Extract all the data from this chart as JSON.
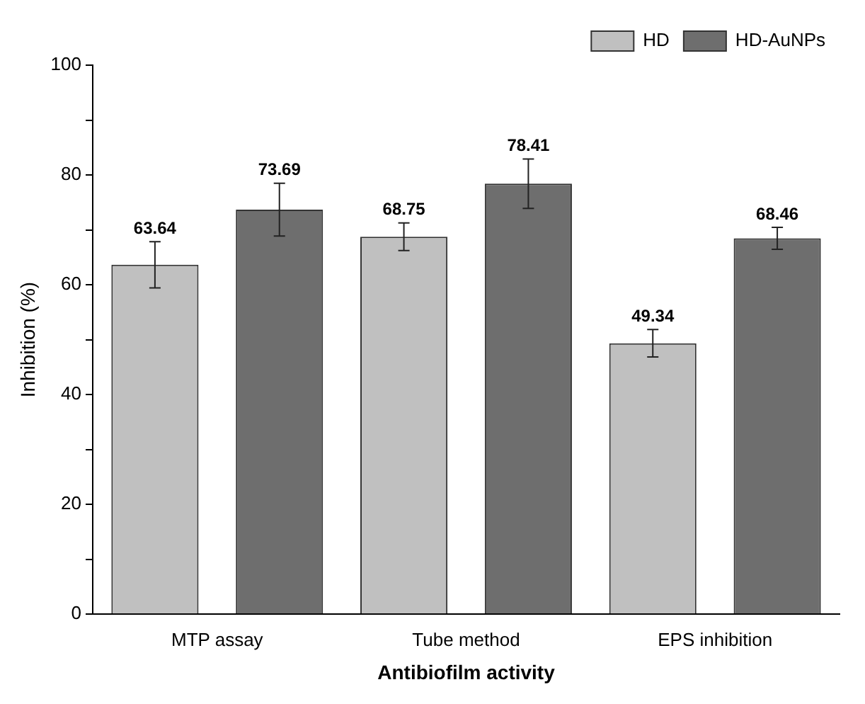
{
  "chart_data": {
    "type": "bar",
    "xlabel": "Antibiofilm activity",
    "ylabel": "Inhibition (%)",
    "categories": [
      "MTP assay",
      "Tube method",
      "EPS inhibition"
    ],
    "series": [
      {
        "name": "HD",
        "color": "#c0c0c0",
        "values": [
          63.64,
          68.75,
          49.34
        ],
        "errors": [
          4.2,
          2.5,
          2.5
        ]
      },
      {
        "name": "HD-AuNPs",
        "color": "#6e6e6e",
        "values": [
          73.69,
          78.41,
          68.46
        ],
        "errors": [
          4.8,
          4.5,
          2
        ]
      }
    ],
    "ylim": [
      0,
      100
    ],
    "yticks": [
      0,
      {
        "value": 10,
        "label": null
      },
      20,
      {
        "value": 30,
        "label": null
      },
      40,
      {
        "value": 50,
        "label": null
      },
      60,
      {
        "value": 70,
        "label": null
      },
      80,
      {
        "value": 90,
        "label": null
      },
      100
    ],
    "data_labels": true,
    "grid": false,
    "legend": "top right"
  }
}
